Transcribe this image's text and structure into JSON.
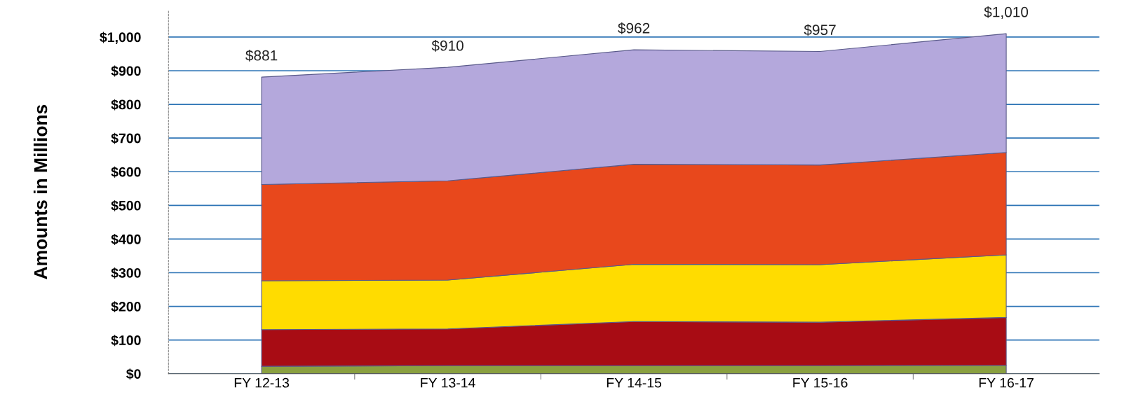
{
  "chart_data": {
    "type": "area",
    "stacked": true,
    "ylabel": "Amounts in Millions",
    "categories": [
      "FY 12-13",
      "FY 13-14",
      "FY 14-15",
      "FY 15-16",
      "FY 16-17"
    ],
    "series": [
      {
        "color": "#8aa040",
        "values": [
          22,
          24,
          24,
          24,
          25
        ]
      },
      {
        "color": "#a80c14",
        "values": [
          109,
          109,
          131,
          129,
          142
        ]
      },
      {
        "color": "#ffdc00",
        "values": [
          145,
          145,
          170,
          171,
          186
        ]
      },
      {
        "color": "#e8481c",
        "values": [
          286,
          295,
          297,
          296,
          304
        ]
      },
      {
        "color": "#b4a8dc",
        "values": [
          319,
          337,
          340,
          337,
          353
        ]
      }
    ],
    "totals": [
      "$881",
      "$910",
      "$962",
      "$957",
      "$1,010"
    ],
    "ylim": [
      0,
      1080
    ],
    "yticks": [
      {
        "value": 0,
        "label": "$0"
      },
      {
        "value": 100,
        "label": "$100"
      },
      {
        "value": 200,
        "label": "$200"
      },
      {
        "value": 300,
        "label": "$300"
      },
      {
        "value": 400,
        "label": "$400"
      },
      {
        "value": 500,
        "label": "$500"
      },
      {
        "value": 600,
        "label": "$600"
      },
      {
        "value": 700,
        "label": "$700"
      },
      {
        "value": 800,
        "label": "$800"
      },
      {
        "value": 900,
        "label": "$900"
      },
      {
        "value": 1000,
        "label": "$1,000"
      }
    ],
    "grid": "y"
  }
}
